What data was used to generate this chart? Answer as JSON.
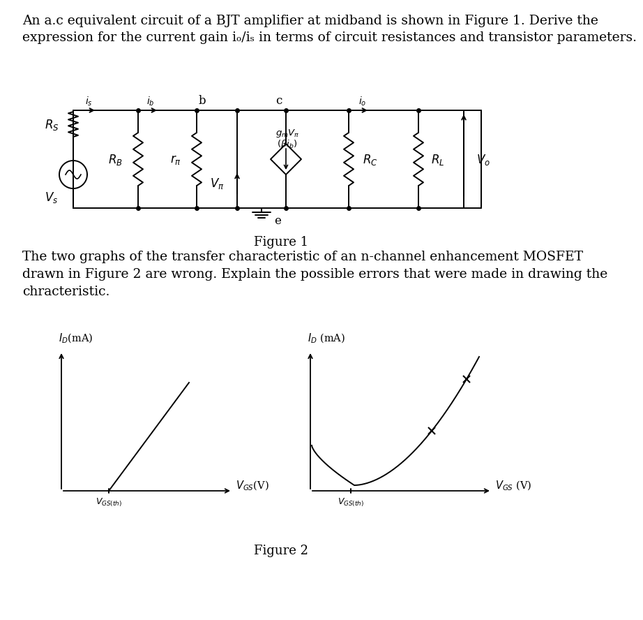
{
  "text_q1": "An a.c equivalent circuit of a BJT amplifier at midband is shown in Figure 1. Derive the",
  "text_q2": "expression for the current gain iₒ/iₛ in terms of circuit resistances and transistor parameters.",
  "text_q3": "The two graphs of the transfer characteristic of an n-channel enhancement MOSFET",
  "text_q4": "drawn in Figure 2 are wrong. Explain the possible errors that were made in drawing the",
  "text_q5": "chracteristic.",
  "fig1_caption": "Figure 1",
  "fig2_caption": "Figure 2",
  "bg_color": "#ffffff",
  "line_color": "#000000",
  "font_size_body": 13.5,
  "font_size_caption": 13
}
